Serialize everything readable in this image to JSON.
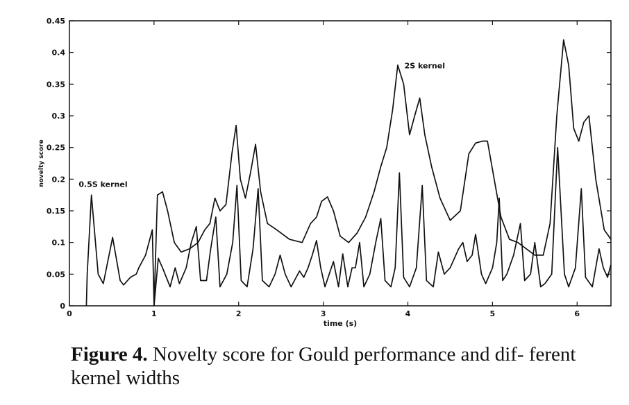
{
  "chart_data": {
    "type": "line",
    "title": "",
    "xlabel": "time (s)",
    "ylabel": "novelty score",
    "xlim": [
      0,
      6.4
    ],
    "ylim": [
      0,
      0.45
    ],
    "xticks": [
      0,
      1,
      2,
      3,
      4,
      5,
      6
    ],
    "yticks": [
      0,
      0.05,
      0.1,
      0.15,
      0.2,
      0.25,
      0.3,
      0.35,
      0.4,
      0.45
    ],
    "grid": false,
    "annotations": [
      {
        "text": "0.5S kernel",
        "x": 0.11,
        "y": 0.188
      },
      {
        "text": "2S kernel",
        "x": 3.96,
        "y": 0.375
      }
    ],
    "series": [
      {
        "name": "0.5S kernel",
        "x": [
          0.2,
          0.21,
          0.26,
          0.34,
          0.4,
          0.51,
          0.6,
          0.64,
          0.72,
          0.79,
          0.82,
          0.9,
          0.98,
          1.0,
          1.05,
          1.1,
          1.16,
          1.19,
          1.25,
          1.3,
          1.38,
          1.44,
          1.5,
          1.55,
          1.62,
          1.67,
          1.73,
          1.78,
          1.86,
          1.93,
          1.98,
          2.03,
          2.1,
          2.17,
          2.23,
          2.28,
          2.36,
          2.43,
          2.49,
          2.55,
          2.62,
          2.68,
          2.72,
          2.77,
          2.82,
          2.87,
          2.92,
          2.97,
          3.02,
          3.07,
          3.12,
          3.18,
          3.23,
          3.29,
          3.34,
          3.38,
          3.43,
          3.48,
          3.55,
          3.62,
          3.68,
          3.73,
          3.8,
          3.85,
          3.9,
          3.95,
          4.02,
          4.1,
          4.17,
          4.22,
          4.3,
          4.36,
          4.43,
          4.5,
          4.6,
          4.65,
          4.7,
          4.76,
          4.8,
          4.87,
          4.92,
          5.0,
          5.05,
          5.08,
          5.12,
          5.17,
          5.25,
          5.33,
          5.38,
          5.45,
          5.5,
          5.57,
          5.62,
          5.7,
          5.77,
          5.85,
          5.9,
          5.98,
          6.05,
          6.1,
          6.18,
          6.26,
          6.31,
          6.36,
          6.4
        ],
        "values": [
          0,
          0.05,
          0.175,
          0.05,
          0.035,
          0.108,
          0.04,
          0.033,
          0.045,
          0.05,
          0.06,
          0.08,
          0.12,
          0.0,
          0.075,
          0.06,
          0.04,
          0.03,
          0.06,
          0.035,
          0.06,
          0.1,
          0.125,
          0.04,
          0.04,
          0.09,
          0.14,
          0.03,
          0.05,
          0.1,
          0.19,
          0.04,
          0.03,
          0.09,
          0.185,
          0.04,
          0.03,
          0.05,
          0.08,
          0.05,
          0.03,
          0.045,
          0.055,
          0.045,
          0.06,
          0.08,
          0.103,
          0.06,
          0.03,
          0.05,
          0.07,
          0.03,
          0.082,
          0.03,
          0.06,
          0.06,
          0.1,
          0.03,
          0.05,
          0.1,
          0.138,
          0.04,
          0.03,
          0.06,
          0.21,
          0.045,
          0.03,
          0.06,
          0.19,
          0.04,
          0.03,
          0.085,
          0.05,
          0.06,
          0.09,
          0.1,
          0.07,
          0.08,
          0.113,
          0.05,
          0.035,
          0.06,
          0.1,
          0.17,
          0.04,
          0.05,
          0.08,
          0.13,
          0.04,
          0.05,
          0.1,
          0.03,
          0.035,
          0.05,
          0.25,
          0.05,
          0.03,
          0.06,
          0.185,
          0.045,
          0.03,
          0.09,
          0.06,
          0.045,
          0.065
        ]
      },
      {
        "name": "2S kernel",
        "x": [
          1.0,
          1.04,
          1.1,
          1.16,
          1.24,
          1.32,
          1.42,
          1.52,
          1.6,
          1.66,
          1.72,
          1.78,
          1.85,
          1.92,
          1.97,
          2.02,
          2.08,
          2.14,
          2.2,
          2.26,
          2.34,
          2.45,
          2.6,
          2.75,
          2.85,
          2.92,
          2.98,
          3.05,
          3.12,
          3.2,
          3.3,
          3.4,
          3.5,
          3.6,
          3.68,
          3.75,
          3.82,
          3.88,
          3.95,
          4.02,
          4.08,
          4.14,
          4.2,
          4.28,
          4.38,
          4.5,
          4.62,
          4.72,
          4.8,
          4.88,
          4.94,
          5.02,
          5.1,
          5.2,
          5.3,
          5.4,
          5.5,
          5.6,
          5.68,
          5.76,
          5.84,
          5.9,
          5.96,
          6.02,
          6.08,
          6.14,
          6.22,
          6.32,
          6.4
        ],
        "values": [
          0.0,
          0.175,
          0.18,
          0.15,
          0.1,
          0.085,
          0.09,
          0.1,
          0.12,
          0.13,
          0.17,
          0.15,
          0.16,
          0.24,
          0.285,
          0.2,
          0.17,
          0.21,
          0.255,
          0.18,
          0.13,
          0.12,
          0.105,
          0.1,
          0.13,
          0.14,
          0.165,
          0.172,
          0.15,
          0.11,
          0.1,
          0.115,
          0.14,
          0.18,
          0.22,
          0.25,
          0.31,
          0.38,
          0.35,
          0.27,
          0.3,
          0.328,
          0.27,
          0.22,
          0.17,
          0.135,
          0.15,
          0.24,
          0.257,
          0.26,
          0.26,
          0.2,
          0.14,
          0.105,
          0.1,
          0.09,
          0.08,
          0.08,
          0.13,
          0.3,
          0.42,
          0.38,
          0.28,
          0.26,
          0.29,
          0.3,
          0.2,
          0.12,
          0.105
        ]
      }
    ]
  },
  "caption": {
    "label": "Figure 4.",
    "text": " Novelty score for Gould performance and dif- ferent kernel widths"
  }
}
